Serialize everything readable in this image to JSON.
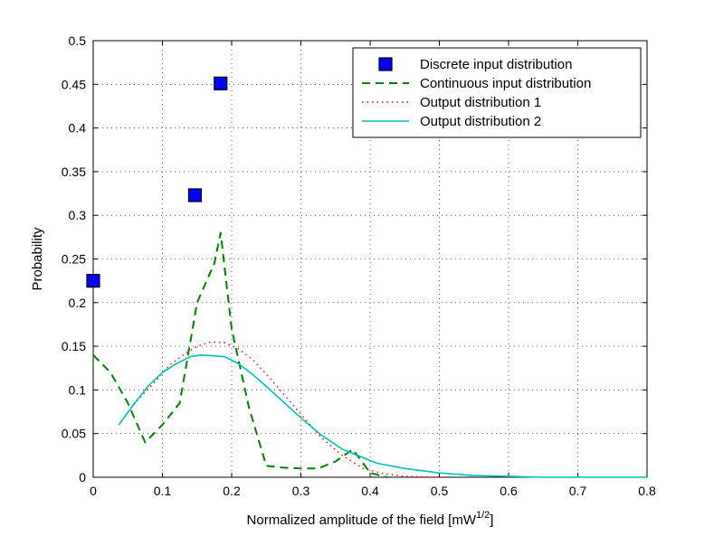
{
  "chart_data": {
    "type": "line",
    "title": "",
    "xlabel": "Normalized amplitude of the field [mW",
    "xlabel_sup": "1/2",
    "xlabel_suffix": "]",
    "ylabel": "Probability",
    "xlim": [
      0,
      0.8
    ],
    "ylim": [
      0,
      0.5
    ],
    "xticks": [
      0,
      0.1,
      0.2,
      0.3,
      0.4,
      0.5,
      0.6,
      0.7,
      0.8
    ],
    "yticks": [
      0,
      0.05,
      0.1,
      0.15,
      0.2,
      0.25,
      0.3,
      0.35,
      0.4,
      0.45,
      0.5
    ],
    "xtick_labels": [
      "0",
      "0.1",
      "0.2",
      "0.3",
      "0.4",
      "0.5",
      "0.6",
      "0.7",
      "0.8"
    ],
    "ytick_labels": [
      "0",
      "0.05",
      "0.1",
      "0.15",
      "0.2",
      "0.25",
      "0.3",
      "0.35",
      "0.4",
      "0.45",
      "0.5"
    ],
    "grid": true,
    "legend_position": "top-right",
    "series": [
      {
        "name": "Discrete input distribution",
        "style": "square-markers",
        "color": "#0000ff",
        "x": [
          0,
          0.147,
          0.184
        ],
        "y": [
          0.225,
          0.323,
          0.451
        ]
      },
      {
        "name": "Continuous input distribution",
        "style": "dashed",
        "color": "#007f00",
        "x": [
          0,
          0.025,
          0.05,
          0.075,
          0.1,
          0.125,
          0.15,
          0.175,
          0.184,
          0.2,
          0.225,
          0.25,
          0.275,
          0.3,
          0.325,
          0.35,
          0.375,
          0.4,
          0.425
        ],
        "y": [
          0.14,
          0.12,
          0.085,
          0.04,
          0.06,
          0.085,
          0.2,
          0.245,
          0.28,
          0.17,
          0.08,
          0.013,
          0.011,
          0.01,
          0.01,
          0.018,
          0.032,
          0.005,
          0.0
        ]
      },
      {
        "name": "Output distribution 1",
        "style": "dotted",
        "color": "#ff0000",
        "x": [
          0.037,
          0.06,
          0.09,
          0.11,
          0.13,
          0.15,
          0.17,
          0.19,
          0.21,
          0.23,
          0.25,
          0.27,
          0.3,
          0.33,
          0.36,
          0.39,
          0.42,
          0.45,
          0.5
        ],
        "y": [
          0.06,
          0.085,
          0.11,
          0.128,
          0.14,
          0.15,
          0.155,
          0.154,
          0.147,
          0.135,
          0.118,
          0.1,
          0.072,
          0.045,
          0.025,
          0.01,
          0.004,
          0.001,
          0.0
        ]
      },
      {
        "name": "Output distribution 2",
        "style": "solid",
        "color": "#00bfbf",
        "x": [
          0.037,
          0.06,
          0.08,
          0.1,
          0.12,
          0.14,
          0.155,
          0.175,
          0.19,
          0.21,
          0.23,
          0.25,
          0.275,
          0.3,
          0.33,
          0.36,
          0.385,
          0.41,
          0.45,
          0.5,
          0.55,
          0.6,
          0.65,
          0.7,
          0.75,
          0.8
        ],
        "y": [
          0.06,
          0.085,
          0.105,
          0.12,
          0.13,
          0.138,
          0.14,
          0.139,
          0.138,
          0.13,
          0.118,
          0.104,
          0.086,
          0.068,
          0.048,
          0.032,
          0.024,
          0.016,
          0.01,
          0.005,
          0.002,
          0.001,
          0.0,
          0.0,
          0.0,
          0.0
        ]
      }
    ]
  }
}
